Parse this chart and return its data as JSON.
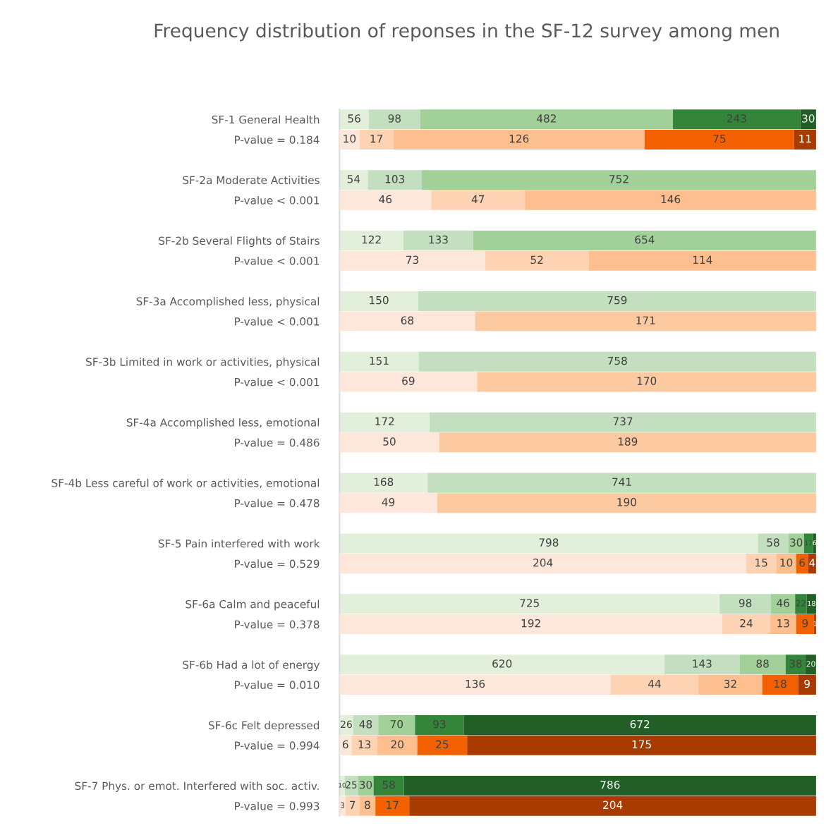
{
  "chart_data": [
    {
      "type": "bar",
      "orientation": "horizontal",
      "stacked": true,
      "data_labels": true,
      "tick_labels": "y",
      "title": "Frequency distribution of reponses in the SF-12 survey among men",
      "categories": [
        "SF-1 General Health",
        "SF-2a Moderate Activities",
        "SF-2b Several Flights of Stairs",
        "SF-3a Accomplished less, physical",
        "SF-3b Limited in work or activities, physical",
        "SF-4a Accomplished less, emotional",
        "SF-4b Less careful of work or activities, emotional",
        "SF-5 Pain interfered with work",
        "SF-6a Calm and peaceful",
        "SF-6b Had a lot of energy",
        "SF-6c Felt depressed",
        "SF-7 Phys. or emot. Interfered with soc. activ."
      ],
      "xlim": [
        0,
        909
      ],
      "series": [
        {
          "values": [
            56,
            54,
            122,
            150,
            151,
            172,
            168,
            798,
            725,
            620,
            26,
            10
          ],
          "colors": [
            "#e2efda",
            "#e2efda",
            "#e2efda",
            "#e2efda",
            "#e2efda",
            "#e2efda",
            "#e2efda",
            "#e2efda",
            "#e2efda",
            "#e2efda",
            "#e2efda",
            "#e2efda"
          ]
        },
        {
          "values": [
            98,
            103,
            133,
            759,
            758,
            737,
            741,
            58,
            98,
            143,
            48,
            25
          ],
          "colors": [
            "#c3dfbf",
            "#c3dfbf",
            "#c3dfbf",
            "#c3dfbf",
            "#c3dfbf",
            "#c3dfbf",
            "#c3dfbf",
            "#c3dfbf",
            "#c3dfbf",
            "#c3dfbf",
            "#c3dfbf",
            "#c3dfbf"
          ]
        },
        {
          "values": [
            482,
            752,
            654,
            null,
            null,
            null,
            null,
            30,
            46,
            88,
            70,
            30
          ],
          "colors": [
            "#a1d099",
            "#a1d099",
            "#a1d099",
            null,
            null,
            null,
            null,
            "#a1d099",
            "#a1d099",
            "#a1d099",
            "#a1d099",
            "#a1d099"
          ]
        },
        {
          "values": [
            243,
            null,
            null,
            null,
            null,
            null,
            null,
            17,
            22,
            38,
            93,
            58
          ],
          "colors": [
            "#34853a",
            null,
            null,
            null,
            null,
            null,
            null,
            "#34853a",
            "#34853a",
            "#34853a",
            "#34853a",
            "#34853a"
          ]
        },
        {
          "values": [
            30,
            null,
            null,
            null,
            null,
            null,
            null,
            6,
            18,
            20,
            672,
            786
          ],
          "colors": [
            "#215f26",
            null,
            null,
            null,
            null,
            null,
            null,
            "#215f26",
            "#215f26",
            "#215f26",
            "#215f26",
            "#215f26"
          ]
        }
      ]
    },
    {
      "type": "bar",
      "orientation": "horizontal",
      "stacked": true,
      "data_labels": true,
      "tick_labels": "y",
      "categories": [
        "P-value = 0.184",
        "P-value < 0.001",
        "P-value < 0.001",
        "P-value < 0.001",
        "P-value < 0.001",
        "P-value = 0.486",
        "P-value = 0.478",
        "P-value = 0.529",
        "P-value = 0.378",
        "P-value = 0.010",
        "P-value = 0.994",
        "P-value = 0.993"
      ],
      "xlim": [
        0,
        239
      ],
      "series": [
        {
          "values": [
            10,
            46,
            73,
            68,
            69,
            50,
            49,
            204,
            192,
            136,
            6,
            3
          ],
          "colors": [
            "#fde6da",
            "#fde6da",
            "#fde6da",
            "#fde6da",
            "#fde6da",
            "#fde6da",
            "#fde6da",
            "#fde6da",
            "#fde6da",
            "#fde6da",
            "#fde6da",
            "#fde6da"
          ]
        },
        {
          "values": [
            17,
            47,
            52,
            171,
            170,
            189,
            190,
            15,
            24,
            44,
            13,
            7
          ],
          "colors": [
            "#fdd3b4",
            "#fdd3b4",
            "#fdd3b4",
            "#fcc9a0",
            "#fcc9a0",
            "#fcc9a0",
            "#fcc9a0",
            "#fdd3b4",
            "#fdd3b4",
            "#fdd3b4",
            "#fdd3b4",
            "#fdd3b4"
          ]
        },
        {
          "values": [
            126,
            146,
            114,
            null,
            null,
            null,
            null,
            10,
            13,
            32,
            20,
            8
          ],
          "colors": [
            "#fdbf8f",
            "#fdbf8f",
            "#fdbf8f",
            null,
            null,
            null,
            null,
            "#fdbf8f",
            "#fdbf8f",
            "#fdbf8f",
            "#fdbf8f",
            "#fdbf8f"
          ]
        },
        {
          "values": [
            75,
            null,
            null,
            null,
            null,
            null,
            null,
            6,
            9,
            18,
            25,
            17
          ],
          "colors": [
            "#f26000",
            null,
            null,
            null,
            null,
            null,
            null,
            "#f26000",
            "#f26000",
            "#f26000",
            "#f26000",
            "#f26000"
          ]
        },
        {
          "values": [
            11,
            null,
            null,
            null,
            null,
            null,
            null,
            4,
            1,
            9,
            175,
            204
          ],
          "colors": [
            "#a73b00",
            null,
            null,
            null,
            null,
            null,
            null,
            "#a73b00",
            "#a73b00",
            "#a73b00",
            "#a73b00",
            "#a73b00"
          ]
        }
      ]
    }
  ]
}
